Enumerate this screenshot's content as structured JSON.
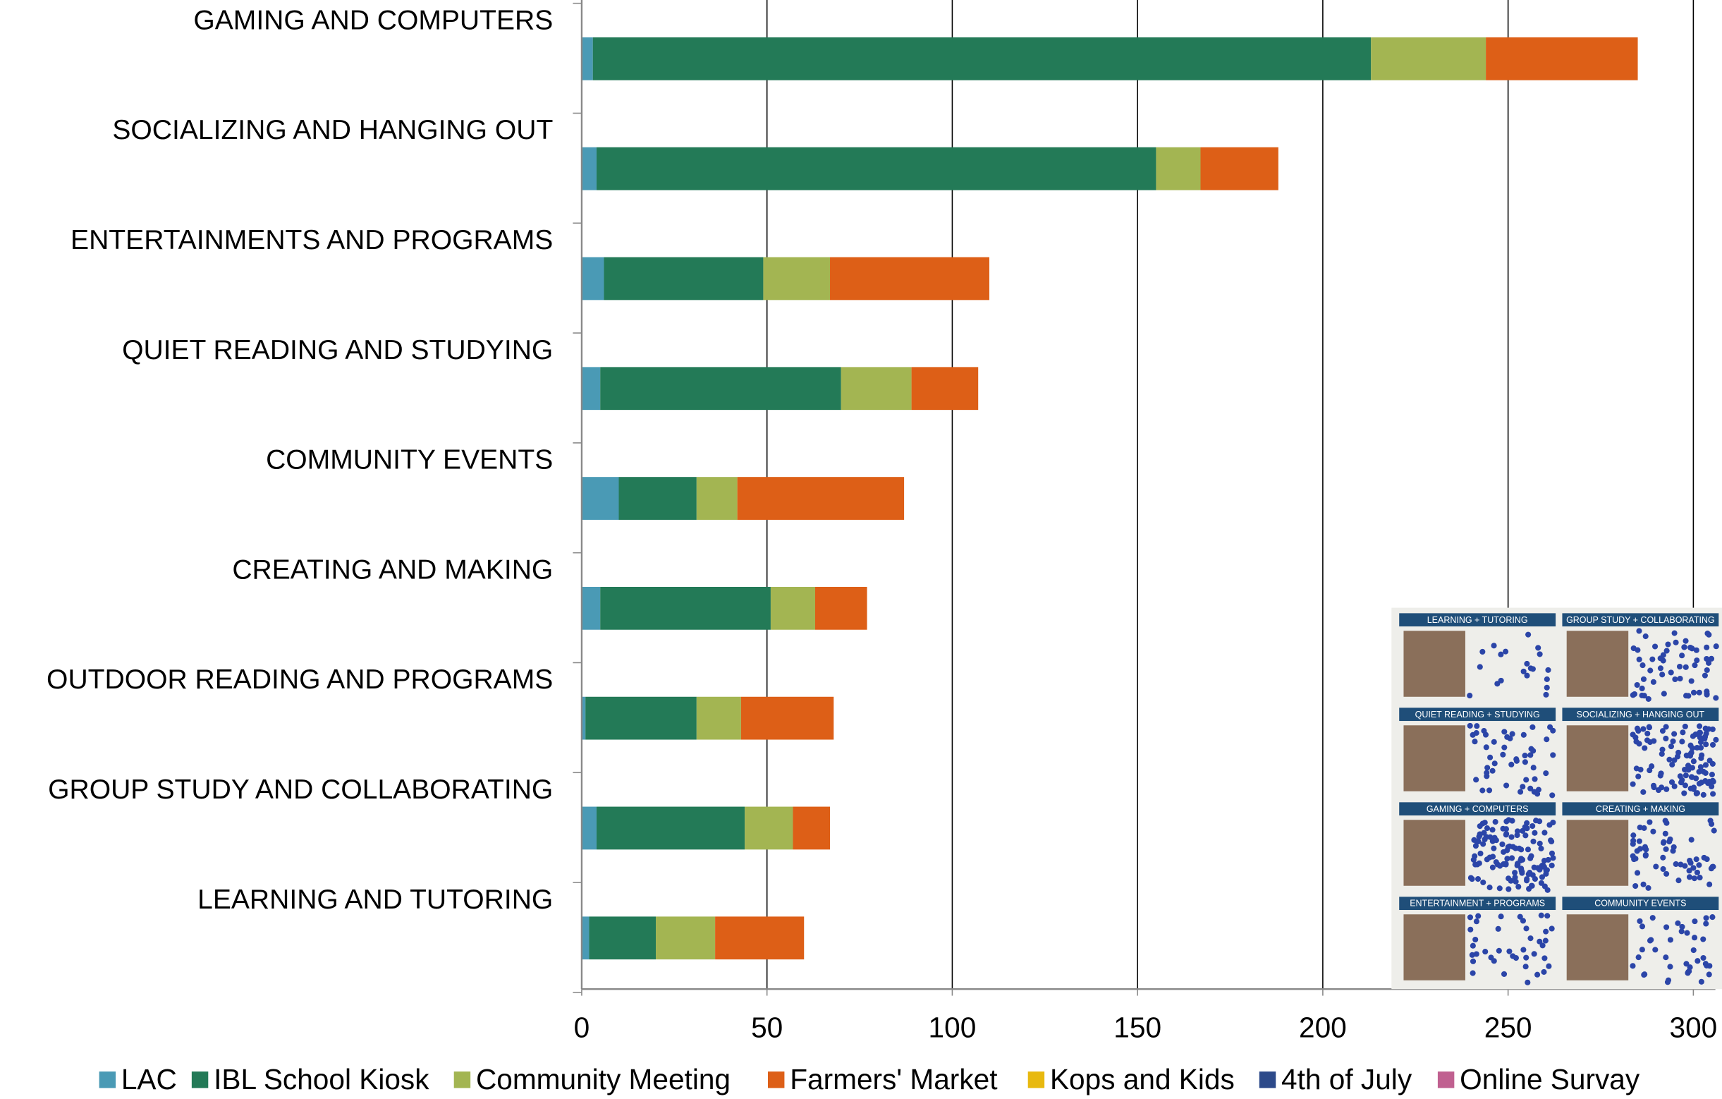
{
  "chart_data": {
    "type": "stacked_bar_horizontal",
    "categories": [
      "GAMING AND COMPUTERS",
      "SOCIALIZING AND HANGING OUT",
      "ENTERTAINMENTS AND PROGRAMS",
      "QUIET READING AND STUDYING",
      "COMMUNITY EVENTS",
      "CREATING AND MAKING",
      "OUTDOOR READING AND PROGRAMS",
      "GROUP STUDY AND COLLABORATING",
      "LEARNING AND TUTORING"
    ],
    "series": [
      {
        "name": "LAC",
        "color": "#4a9ab5",
        "values": [
          3,
          4,
          6,
          5,
          10,
          5,
          1,
          4,
          2
        ]
      },
      {
        "name": "IBL School Kiosk",
        "color": "#237a57",
        "values": [
          210,
          151,
          43,
          65,
          21,
          46,
          30,
          40,
          18
        ]
      },
      {
        "name": "Community Meeting",
        "color": "#a3b552",
        "values": [
          31,
          12,
          18,
          19,
          11,
          12,
          12,
          13,
          16
        ]
      },
      {
        "name": "Farmers' Market",
        "color": "#dd5f17",
        "values": [
          41,
          21,
          43,
          18,
          45,
          14,
          25,
          10,
          24
        ]
      },
      {
        "name": "Kops and Kids",
        "color": "#e8b90f",
        "values": [
          0,
          0,
          0,
          0,
          0,
          0,
          0,
          0,
          0
        ]
      },
      {
        "name": "4th of July",
        "color": "#2d4a8a",
        "values": [
          0,
          0,
          0,
          0,
          0,
          0,
          0,
          0,
          0
        ]
      },
      {
        "name": "Online Survay",
        "color": "#c06090",
        "values": [
          0,
          0,
          0,
          0,
          0,
          0,
          0,
          0,
          0
        ]
      }
    ],
    "xlim": [
      0,
      300
    ],
    "xticks": [
      0,
      50,
      100,
      150,
      200,
      250,
      300
    ],
    "grid": true,
    "legend": "bottom",
    "annotations": [
      "LEARNING + TUTORING",
      "GROUP STUDY + COLLABORATING",
      "QUIET READING + STUDYING",
      "SOCIALIZING + HANGING OUT",
      "GAMING + COMPUTERS",
      "CREATING + MAKING",
      "ENTERTAINMENT + PROGRAMS",
      "COMMUNITY EVENTS"
    ]
  }
}
